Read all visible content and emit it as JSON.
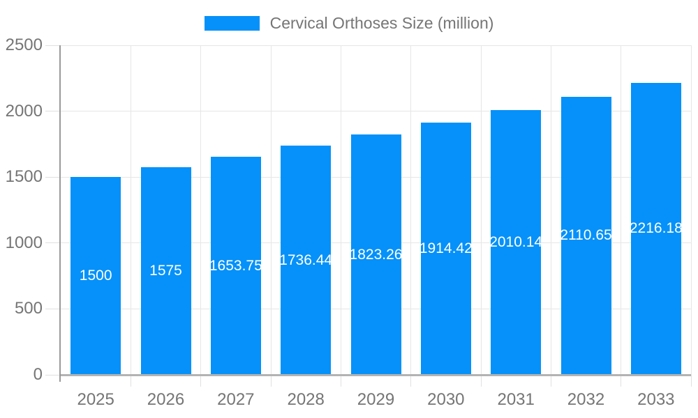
{
  "legend": {
    "label": "Cervical Orthoses Size (million)"
  },
  "colors": {
    "bar": "#0591f9",
    "axis_text": "#757575",
    "grid": "#e6e6e6",
    "tick": "#e0e0e0",
    "axis_line": "#999999",
    "baseline": "#b3b3b3",
    "value_label": "#ffffff"
  },
  "chart_data": {
    "type": "bar",
    "title": "Cervical Orthoses Size (million)",
    "categories": [
      "2025",
      "2026",
      "2027",
      "2028",
      "2029",
      "2030",
      "2031",
      "2032",
      "2033"
    ],
    "values": [
      1500,
      1575,
      1653.75,
      1736.44,
      1823.26,
      1914.42,
      2010.14,
      2110.65,
      2216.18
    ],
    "value_labels": [
      "1500",
      "1575",
      "1653.75",
      "1736.44",
      "1823.26",
      "1914.42",
      "2010.14",
      "2110.65",
      "2216.18"
    ],
    "xlabel": "",
    "ylabel": "",
    "ylim": [
      0,
      2500
    ],
    "yticks": [
      0,
      500,
      1000,
      1500,
      2000,
      2500
    ],
    "legend_position": "top",
    "grid": true,
    "value_label_style": "white-inside-center"
  }
}
